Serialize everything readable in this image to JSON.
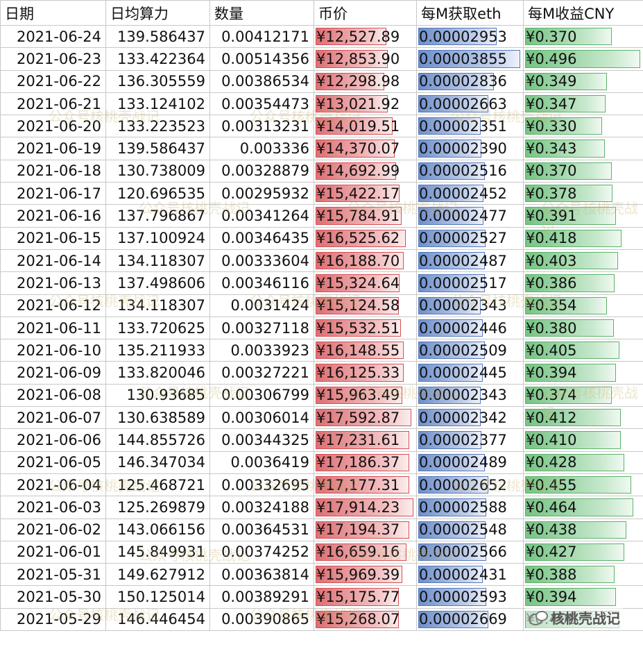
{
  "headers": [
    "日期",
    "日均算力",
    "数量",
    "币价",
    "每M获取eth",
    "每M收益CNY"
  ],
  "rows": [
    {
      "date": "2021-06-24",
      "hashrate": "139.586437",
      "amount": "0.00412171",
      "price": "¥12,527.89",
      "eth_per_m": "0.00002953",
      "cny_per_m": "¥0.370",
      "price_pct": 72,
      "eth_pct": 77,
      "cny_pct": 75
    },
    {
      "date": "2021-06-23",
      "hashrate": "133.422364",
      "amount": "0.00514356",
      "price": "¥12,853.90",
      "eth_per_m": "0.00003855",
      "cny_per_m": "¥0.496",
      "price_pct": 74,
      "eth_pct": 100,
      "cny_pct": 100
    },
    {
      "date": "2021-06-22",
      "hashrate": "136.305559",
      "amount": "0.00386534",
      "price": "¥12,298.98",
      "eth_per_m": "0.00002836",
      "cny_per_m": "¥0.349",
      "price_pct": 70,
      "eth_pct": 74,
      "cny_pct": 71
    },
    {
      "date": "2021-06-21",
      "hashrate": "133.124102",
      "amount": "0.00354473",
      "price": "¥13,021.92",
      "eth_per_m": "0.00002663",
      "cny_per_m": "¥0.347",
      "price_pct": 74,
      "eth_pct": 69,
      "cny_pct": 70
    },
    {
      "date": "2021-06-20",
      "hashrate": "133.223523",
      "amount": "0.00313231",
      "price": "¥14,019.51",
      "eth_per_m": "0.00002351",
      "cny_per_m": "¥0.330",
      "price_pct": 79,
      "eth_pct": 61,
      "cny_pct": 67
    },
    {
      "date": "2021-06-19",
      "hashrate": "139.586437",
      "amount": "0.003336",
      "price": "¥14,370.07",
      "eth_per_m": "0.00002390",
      "cny_per_m": "¥0.343",
      "price_pct": 81,
      "eth_pct": 62,
      "cny_pct": 69
    },
    {
      "date": "2021-06-18",
      "hashrate": "130.738009",
      "amount": "0.00328879",
      "price": "¥14,692.99",
      "eth_per_m": "0.00002516",
      "cny_per_m": "¥0.370",
      "price_pct": 82,
      "eth_pct": 65,
      "cny_pct": 75
    },
    {
      "date": "2021-06-17",
      "hashrate": "120.696535",
      "amount": "0.00295932",
      "price": "¥15,422.17",
      "eth_per_m": "0.00002452",
      "cny_per_m": "¥0.378",
      "price_pct": 86,
      "eth_pct": 64,
      "cny_pct": 76
    },
    {
      "date": "2021-06-16",
      "hashrate": "137.796867",
      "amount": "0.00341264",
      "price": "¥15,784.91",
      "eth_per_m": "0.00002477",
      "cny_per_m": "¥0.391",
      "price_pct": 88,
      "eth_pct": 64,
      "cny_pct": 79
    },
    {
      "date": "2021-06-15",
      "hashrate": "137.100924",
      "amount": "0.00346435",
      "price": "¥16,525.62",
      "eth_per_m": "0.00002527",
      "cny_per_m": "¥0.418",
      "price_pct": 92,
      "eth_pct": 66,
      "cny_pct": 84
    },
    {
      "date": "2021-06-14",
      "hashrate": "134.118307",
      "amount": "0.00333604",
      "price": "¥16,188.70",
      "eth_per_m": "0.00002487",
      "cny_per_m": "¥0.403",
      "price_pct": 90,
      "eth_pct": 65,
      "cny_pct": 81
    },
    {
      "date": "2021-06-13",
      "hashrate": "137.498606",
      "amount": "0.00346116",
      "price": "¥15,324.64",
      "eth_per_m": "0.00002517",
      "cny_per_m": "¥0.386",
      "price_pct": 86,
      "eth_pct": 65,
      "cny_pct": 78
    },
    {
      "date": "2021-06-12",
      "hashrate": "134.118307",
      "amount": "0.0031424",
      "price": "¥15,124.58",
      "eth_per_m": "0.00002343",
      "cny_per_m": "¥0.354",
      "price_pct": 85,
      "eth_pct": 61,
      "cny_pct": 71
    },
    {
      "date": "2021-06-11",
      "hashrate": "133.720625",
      "amount": "0.00327118",
      "price": "¥15,532.51",
      "eth_per_m": "0.00002446",
      "cny_per_m": "¥0.380",
      "price_pct": 87,
      "eth_pct": 63,
      "cny_pct": 77
    },
    {
      "date": "2021-06-10",
      "hashrate": "135.211933",
      "amount": "0.0033923",
      "price": "¥16,148.55",
      "eth_per_m": "0.00002509",
      "cny_per_m": "¥0.405",
      "price_pct": 90,
      "eth_pct": 65,
      "cny_pct": 82
    },
    {
      "date": "2021-06-09",
      "hashrate": "133.820046",
      "amount": "0.00327221",
      "price": "¥16,125.33",
      "eth_per_m": "0.00002445",
      "cny_per_m": "¥0.394",
      "price_pct": 90,
      "eth_pct": 63,
      "cny_pct": 79
    },
    {
      "date": "2021-06-08",
      "hashrate": "130.93685",
      "amount": "0.00306799",
      "price": "¥15,963.49",
      "eth_per_m": "0.00002343",
      "cny_per_m": "¥0.374",
      "price_pct": 89,
      "eth_pct": 61,
      "cny_pct": 75
    },
    {
      "date": "2021-06-07",
      "hashrate": "130.638589",
      "amount": "0.00306014",
      "price": "¥17,592.87",
      "eth_per_m": "0.00002342",
      "cny_per_m": "¥0.412",
      "price_pct": 98,
      "eth_pct": 61,
      "cny_pct": 83
    },
    {
      "date": "2021-06-06",
      "hashrate": "144.855726",
      "amount": "0.00344325",
      "price": "¥17,231.61",
      "eth_per_m": "0.00002377",
      "cny_per_m": "¥0.410",
      "price_pct": 96,
      "eth_pct": 62,
      "cny_pct": 83
    },
    {
      "date": "2021-06-05",
      "hashrate": "146.347034",
      "amount": "0.0036419",
      "price": "¥17,186.37",
      "eth_per_m": "0.00002489",
      "cny_per_m": "¥0.428",
      "price_pct": 96,
      "eth_pct": 65,
      "cny_pct": 86
    },
    {
      "date": "2021-06-04",
      "hashrate": "125.468721",
      "amount": "0.00332695",
      "price": "¥17,177.31",
      "eth_per_m": "0.00002652",
      "cny_per_m": "¥0.455",
      "price_pct": 96,
      "eth_pct": 69,
      "cny_pct": 92
    },
    {
      "date": "2021-06-03",
      "hashrate": "125.269879",
      "amount": "0.00324188",
      "price": "¥17,914.23",
      "eth_per_m": "0.00002588",
      "cny_per_m": "¥0.464",
      "price_pct": 100,
      "eth_pct": 67,
      "cny_pct": 94
    },
    {
      "date": "2021-06-02",
      "hashrate": "143.066156",
      "amount": "0.00364531",
      "price": "¥17,194.37",
      "eth_per_m": "0.00002548",
      "cny_per_m": "¥0.438",
      "price_pct": 96,
      "eth_pct": 66,
      "cny_pct": 88
    },
    {
      "date": "2021-06-01",
      "hashrate": "145.849931",
      "amount": "0.00374252",
      "price": "¥16,659.16",
      "eth_per_m": "0.00002566",
      "cny_per_m": "¥0.427",
      "price_pct": 93,
      "eth_pct": 67,
      "cny_pct": 86
    },
    {
      "date": "2021-05-31",
      "hashrate": "149.627912",
      "amount": "0.00363814",
      "price": "¥15,969.39",
      "eth_per_m": "0.00002431",
      "cny_per_m": "¥0.388",
      "price_pct": 89,
      "eth_pct": 63,
      "cny_pct": 78
    },
    {
      "date": "2021-05-30",
      "hashrate": "150.125014",
      "amount": "0.00389291",
      "price": "¥15,175.77",
      "eth_per_m": "0.00002593",
      "cny_per_m": "¥0.394",
      "price_pct": 85,
      "eth_pct": 67,
      "cny_pct": 79
    },
    {
      "date": "2021-05-29",
      "hashrate": "146.446454",
      "amount": "0.00390865",
      "price": "¥15,268.07",
      "eth_per_m": "0.00002669",
      "cny_per_m": "¥0.408",
      "price_pct": 85,
      "eth_pct": 69,
      "cny_pct": 82
    }
  ],
  "watermark_text": "公众号核桃壳战记",
  "logo_text": "核桃壳战记",
  "colors": {
    "price_bar": "#dd6f73",
    "eth_bar": "#6e8fcb",
    "cny_bar": "#75c383"
  }
}
